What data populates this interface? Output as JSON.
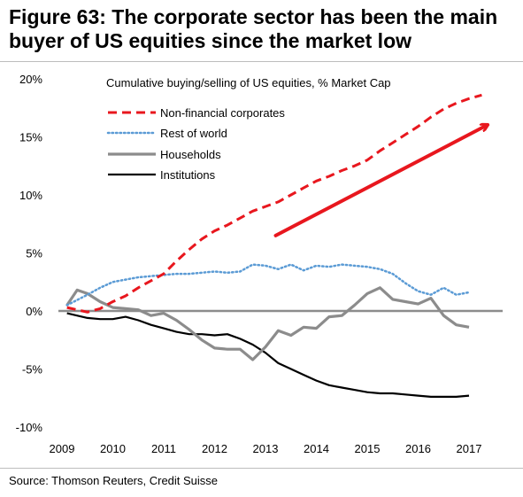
{
  "figure": {
    "title": "Figure 63: The corporate sector has been the main buyer of US equities since the market low",
    "source": "Source: Thomson Reuters, Credit Suisse"
  },
  "chart_data": {
    "type": "line",
    "title": "",
    "subtitle": "Cumulative buying/selling of US equities, % Market Cap",
    "xlabel": "",
    "ylabel": "",
    "xlim": [
      2009,
      2017.8
    ],
    "ylim": [
      -10,
      20
    ],
    "x_ticks": [
      "2009",
      "2010",
      "2011",
      "2012",
      "2013",
      "2014",
      "2015",
      "2016",
      "2017"
    ],
    "y_ticks": [
      {
        "value": 20,
        "label": "20%"
      },
      {
        "value": 15,
        "label": "15%"
      },
      {
        "value": 10,
        "label": "10%"
      },
      {
        "value": 5,
        "label": "5%"
      },
      {
        "value": 0,
        "label": "0%"
      },
      {
        "value": -5,
        "label": "-5%"
      },
      {
        "value": -10,
        "label": "-10%"
      }
    ],
    "grid": false,
    "legend_position": "top-left",
    "series": [
      {
        "name": "Non-financial corporates",
        "color": "#e8171e",
        "style": "dashed",
        "points": [
          [
            2009.1,
            0.3
          ],
          [
            2009.5,
            -0.1
          ],
          [
            2009.75,
            0.2
          ],
          [
            2010.0,
            0.8
          ],
          [
            2010.25,
            1.3
          ],
          [
            2010.5,
            2.0
          ],
          [
            2010.75,
            2.6
          ],
          [
            2011.0,
            3.2
          ],
          [
            2011.25,
            4.3
          ],
          [
            2011.5,
            5.3
          ],
          [
            2011.75,
            6.2
          ],
          [
            2012.0,
            6.9
          ],
          [
            2012.25,
            7.4
          ],
          [
            2012.5,
            8.0
          ],
          [
            2012.75,
            8.6
          ],
          [
            2013.0,
            9.0
          ],
          [
            2013.25,
            9.4
          ],
          [
            2013.5,
            10.0
          ],
          [
            2013.75,
            10.6
          ],
          [
            2014.0,
            11.2
          ],
          [
            2014.25,
            11.6
          ],
          [
            2014.5,
            12.1
          ],
          [
            2014.75,
            12.5
          ],
          [
            2015.0,
            13.0
          ],
          [
            2015.25,
            13.8
          ],
          [
            2015.5,
            14.5
          ],
          [
            2015.75,
            15.2
          ],
          [
            2016.0,
            15.9
          ],
          [
            2016.25,
            16.7
          ],
          [
            2016.5,
            17.4
          ],
          [
            2016.75,
            17.9
          ],
          [
            2017.0,
            18.3
          ],
          [
            2017.25,
            18.6
          ]
        ]
      },
      {
        "name": "Rest of world",
        "color": "#5b9bd5",
        "style": "dotted",
        "points": [
          [
            2009.1,
            0.5
          ],
          [
            2009.5,
            1.4
          ],
          [
            2009.75,
            2.0
          ],
          [
            2010.0,
            2.5
          ],
          [
            2010.25,
            2.7
          ],
          [
            2010.5,
            2.9
          ],
          [
            2010.75,
            3.0
          ],
          [
            2011.0,
            3.1
          ],
          [
            2011.25,
            3.2
          ],
          [
            2011.5,
            3.2
          ],
          [
            2011.75,
            3.3
          ],
          [
            2012.0,
            3.4
          ],
          [
            2012.25,
            3.3
          ],
          [
            2012.5,
            3.4
          ],
          [
            2012.75,
            4.0
          ],
          [
            2013.0,
            3.9
          ],
          [
            2013.25,
            3.6
          ],
          [
            2013.5,
            4.0
          ],
          [
            2013.75,
            3.5
          ],
          [
            2014.0,
            3.9
          ],
          [
            2014.25,
            3.8
          ],
          [
            2014.5,
            4.0
          ],
          [
            2014.75,
            3.9
          ],
          [
            2015.0,
            3.8
          ],
          [
            2015.25,
            3.6
          ],
          [
            2015.5,
            3.2
          ],
          [
            2015.75,
            2.4
          ],
          [
            2016.0,
            1.7
          ],
          [
            2016.25,
            1.4
          ],
          [
            2016.5,
            2.0
          ],
          [
            2016.75,
            1.4
          ],
          [
            2017.0,
            1.6
          ]
        ]
      },
      {
        "name": "Households",
        "color": "#8c8c8c",
        "style": "solid",
        "points": [
          [
            2009.1,
            0.5
          ],
          [
            2009.3,
            1.8
          ],
          [
            2009.5,
            1.5
          ],
          [
            2009.75,
            0.8
          ],
          [
            2010.0,
            0.3
          ],
          [
            2010.25,
            0.2
          ],
          [
            2010.5,
            0.1
          ],
          [
            2010.75,
            -0.4
          ],
          [
            2011.0,
            -0.2
          ],
          [
            2011.25,
            -0.8
          ],
          [
            2011.5,
            -1.6
          ],
          [
            2011.75,
            -2.5
          ],
          [
            2012.0,
            -3.2
          ],
          [
            2012.25,
            -3.3
          ],
          [
            2012.5,
            -3.3
          ],
          [
            2012.75,
            -4.2
          ],
          [
            2013.0,
            -3.1
          ],
          [
            2013.25,
            -1.7
          ],
          [
            2013.5,
            -2.1
          ],
          [
            2013.75,
            -1.4
          ],
          [
            2014.0,
            -1.5
          ],
          [
            2014.25,
            -0.5
          ],
          [
            2014.5,
            -0.4
          ],
          [
            2014.75,
            0.5
          ],
          [
            2015.0,
            1.5
          ],
          [
            2015.25,
            2.0
          ],
          [
            2015.5,
            1.0
          ],
          [
            2015.75,
            0.8
          ],
          [
            2016.0,
            0.6
          ],
          [
            2016.25,
            1.1
          ],
          [
            2016.5,
            -0.4
          ],
          [
            2016.75,
            -1.2
          ],
          [
            2017.0,
            -1.4
          ]
        ]
      },
      {
        "name": "Institutions",
        "color": "#000000",
        "style": "solid",
        "points": [
          [
            2009.1,
            -0.2
          ],
          [
            2009.5,
            -0.6
          ],
          [
            2009.75,
            -0.7
          ],
          [
            2010.0,
            -0.7
          ],
          [
            2010.25,
            -0.5
          ],
          [
            2010.5,
            -0.8
          ],
          [
            2010.75,
            -1.2
          ],
          [
            2011.0,
            -1.5
          ],
          [
            2011.25,
            -1.8
          ],
          [
            2011.5,
            -2.0
          ],
          [
            2011.75,
            -2.0
          ],
          [
            2012.0,
            -2.1
          ],
          [
            2012.25,
            -2.0
          ],
          [
            2012.5,
            -2.4
          ],
          [
            2012.75,
            -2.9
          ],
          [
            2013.0,
            -3.6
          ],
          [
            2013.25,
            -4.5
          ],
          [
            2013.5,
            -5.0
          ],
          [
            2013.75,
            -5.5
          ],
          [
            2014.0,
            -6.0
          ],
          [
            2014.25,
            -6.4
          ],
          [
            2014.5,
            -6.6
          ],
          [
            2014.75,
            -6.8
          ],
          [
            2015.0,
            -7.0
          ],
          [
            2015.25,
            -7.1
          ],
          [
            2015.5,
            -7.1
          ],
          [
            2015.75,
            -7.2
          ],
          [
            2016.0,
            -7.3
          ],
          [
            2016.25,
            -7.4
          ],
          [
            2016.5,
            -7.4
          ],
          [
            2016.75,
            -7.4
          ],
          [
            2017.0,
            -7.3
          ]
        ]
      }
    ],
    "annotations": [
      {
        "type": "arrow",
        "color": "#e8171e",
        "from": [
          2013.2,
          6.5
        ],
        "to": [
          2017.35,
          16.0
        ]
      }
    ]
  }
}
